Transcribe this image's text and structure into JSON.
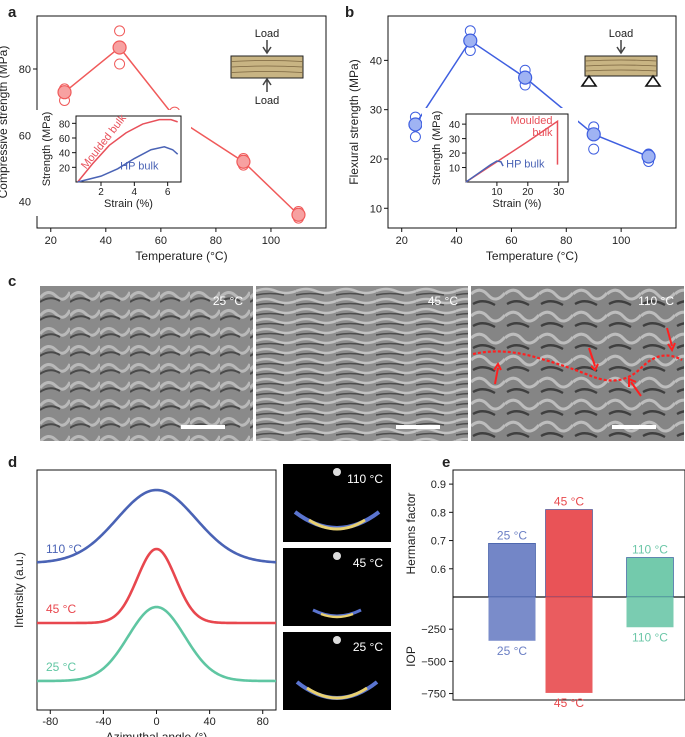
{
  "panel_letters": {
    "a": "a",
    "b": "b",
    "c": "c",
    "d": "d",
    "e": "e"
  },
  "schematic": {
    "load": "Load"
  },
  "chart_data": [
    {
      "id": "a",
      "type": "scatter",
      "xlabel": "Temperature (°C)",
      "ylabel": "Compressive strength (MPa)",
      "xlim": [
        15,
        120
      ],
      "ylim": [
        32,
        96
      ],
      "xticks": [
        20,
        40,
        60,
        80,
        100
      ],
      "yticks": [
        40,
        60,
        80
      ],
      "color": "#f05a5a",
      "series": [
        {
          "x": [
            25,
            45,
            65,
            90,
            110
          ],
          "y": [
            73,
            86.5,
            65.5,
            52,
            36
          ],
          "replicates": [
            [
              70.5,
              73,
              74
            ],
            [
              81.5,
              86.5,
              91.5
            ],
            [
              63.5,
              65,
              67
            ],
            [
              51,
              52,
              53
            ],
            [
              35,
              36,
              37
            ]
          ]
        }
      ],
      "inset": {
        "type": "line",
        "xlabel": "Strain (%)",
        "ylabel": "Strength (MPa)",
        "xlim": [
          0.5,
          6.8
        ],
        "ylim": [
          0,
          90
        ],
        "xticks": [
          2,
          4,
          6
        ],
        "yticks": [
          20,
          40,
          60,
          80
        ],
        "series": [
          {
            "name": "Moulded bulk",
            "color": "#e8505a",
            "x": [
              0.6,
              1.5,
              2.5,
              3.5,
              4.5,
              5.5,
              6.2,
              6.6
            ],
            "y": [
              0,
              25,
              50,
              67,
              79,
              85,
              85,
              82
            ]
          },
          {
            "name": "HP bulk",
            "color": "#4a63b5",
            "x": [
              0.6,
              2,
              3,
              4,
              5,
              5.8,
              6.3,
              6.6
            ],
            "y": [
              0,
              8,
              18,
              32,
              44,
              48,
              44,
              38
            ]
          }
        ]
      }
    },
    {
      "id": "b",
      "type": "scatter",
      "xlabel": "Temperature (°C)",
      "ylabel": "Flexural strength (MPa)",
      "xlim": [
        15,
        120
      ],
      "ylim": [
        6,
        49
      ],
      "xticks": [
        20,
        40,
        60,
        80,
        100
      ],
      "yticks": [
        10,
        20,
        30,
        40
      ],
      "color": "#3f5fe0",
      "series": [
        {
          "x": [
            25,
            45,
            65,
            90,
            110
          ],
          "y": [
            27,
            44,
            36.5,
            25,
            20.5
          ],
          "replicates": [
            [
              24.5,
              27,
              28.5
            ],
            [
              42,
              44,
              46
            ],
            [
              35,
              36.5,
              38
            ],
            [
              22,
              25,
              26.5
            ],
            [
              19.5,
              20.5,
              21
            ]
          ]
        }
      ],
      "inset": {
        "type": "line",
        "xlabel": "Strain (%)",
        "ylabel": "Strength (MPa)",
        "xlim": [
          0,
          33
        ],
        "ylim": [
          0,
          47
        ],
        "xticks": [
          10,
          20,
          30
        ],
        "yticks": [
          10,
          20,
          30,
          40
        ],
        "series": [
          {
            "name": "Moulded bulk",
            "color": "#e8505a",
            "x": [
              0,
              10,
              20,
              29.6,
              29.6
            ],
            "y": [
              0,
              14,
              28,
              42,
              12
            ]
          },
          {
            "name": "HP bulk",
            "color": "#4a63b5",
            "x": [
              0,
              4,
              8,
              10,
              11.3,
              12
            ],
            "y": [
              0,
              6,
              12,
              14.5,
              14,
              11
            ]
          }
        ]
      }
    },
    {
      "id": "d",
      "type": "line",
      "xlabel": "Azimuthal angle (°)",
      "ylabel": "Intensity (a.u.)",
      "xlim": [
        -90,
        90
      ],
      "xticks": [
        -80,
        -40,
        0,
        40,
        80
      ],
      "series": [
        {
          "name": "110 °C",
          "color": "#4a63b5",
          "fwhm": 70
        },
        {
          "name": "45 °C",
          "color": "#e8474e",
          "fwhm": 34
        },
        {
          "name": "25 °C",
          "color": "#5fc6a2",
          "fwhm": 50
        }
      ]
    },
    {
      "id": "e",
      "type": "bar",
      "categories": [
        "25 °C",
        "45 °C",
        "110 °C"
      ],
      "colors": [
        "#6b7fc4",
        "#e84a4e",
        "#6cc7a8"
      ],
      "top": {
        "ylabel": "Hermans factor",
        "ylim": [
          0.5,
          0.95
        ],
        "yticks": [
          0.6,
          0.7,
          0.8,
          0.9
        ],
        "values": [
          0.69,
          0.81,
          0.64
        ]
      },
      "bottom": {
        "ylabel": "IOP",
        "ylim": [
          -800,
          0
        ],
        "yticks": [
          -250,
          -500,
          -750
        ],
        "values": [
          -340,
          -745,
          -235
        ]
      }
    }
  ],
  "sem_panels": [
    "25 °C",
    "45 °C",
    "110 °C"
  ],
  "xray_panels": [
    "110 °C",
    "45 °C",
    "25 °C"
  ]
}
